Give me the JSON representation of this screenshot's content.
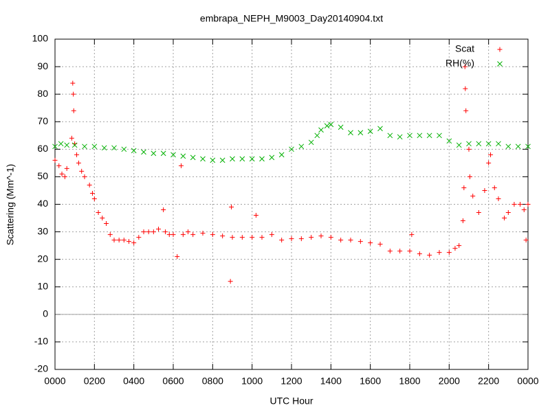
{
  "chart_data": {
    "type": "scatter",
    "title": "embrapa_NEPH_M9003_Day20140904.txt",
    "xlabel": "UTC Hour",
    "ylabel": "Scattering (Mm^-1)",
    "xlim": [
      0,
      24
    ],
    "ylim": [
      -20,
      100
    ],
    "xticks": [
      {
        "value": 0,
        "label": "0000"
      },
      {
        "value": 2,
        "label": "0200"
      },
      {
        "value": 4,
        "label": "0400"
      },
      {
        "value": 6,
        "label": "0600"
      },
      {
        "value": 8,
        "label": "0800"
      },
      {
        "value": 10,
        "label": "1000"
      },
      {
        "value": 12,
        "label": "1200"
      },
      {
        "value": 14,
        "label": "1400"
      },
      {
        "value": 16,
        "label": "1600"
      },
      {
        "value": 18,
        "label": "1800"
      },
      {
        "value": 20,
        "label": "2000"
      },
      {
        "value": 22,
        "label": "2200"
      },
      {
        "value": 24,
        "label": "0000"
      }
    ],
    "yticks": [
      -20,
      -10,
      0,
      10,
      20,
      30,
      40,
      50,
      60,
      70,
      80,
      90,
      100
    ],
    "grid": true,
    "zero_line": true,
    "legend": "top right",
    "series": [
      {
        "name": "Scat",
        "color": "#ff0000",
        "marker": "+",
        "x": [
          0,
          0.2,
          0.35,
          0.5,
          0.6,
          0.85,
          0.9,
          0.93,
          0.95,
          1.0,
          1.1,
          1.2,
          1.35,
          1.5,
          1.75,
          1.9,
          2.0,
          2.2,
          2.4,
          2.6,
          2.8,
          3.0,
          3.25,
          3.5,
          3.75,
          4.0,
          4.25,
          4.5,
          4.75,
          5.0,
          5.25,
          5.5,
          5.6,
          5.8,
          6.0,
          6.2,
          6.4,
          6.5,
          6.75,
          7.0,
          7.5,
          8.0,
          8.5,
          8.9,
          8.95,
          9.0,
          9.5,
          10.0,
          10.2,
          10.5,
          11.0,
          11.5,
          12.0,
          12.5,
          13.0,
          13.5,
          14.0,
          14.5,
          15.0,
          15.5,
          16.0,
          16.5,
          17.0,
          17.5,
          18.0,
          18.1,
          18.5,
          19.0,
          19.5,
          20.0,
          20.3,
          20.5,
          20.7,
          20.75,
          20.8,
          20.82,
          20.85,
          21.0,
          21.05,
          21.2,
          21.5,
          21.8,
          22.0,
          22.1,
          22.3,
          22.5,
          22.8,
          23.0,
          23.3,
          23.6,
          23.8,
          23.9,
          24.0
        ],
        "values": [
          56,
          54,
          51,
          50,
          53,
          64,
          84,
          80,
          74,
          62,
          58,
          55,
          52,
          50,
          47,
          44,
          42,
          37,
          35,
          33,
          29,
          27,
          27,
          27,
          26.5,
          26,
          28,
          30,
          30,
          30,
          31,
          38,
          30,
          29,
          29,
          21,
          54,
          29,
          30,
          29,
          29.5,
          29,
          28.5,
          12,
          39,
          28,
          28,
          28,
          36,
          28,
          29,
          27,
          27.5,
          27.5,
          28,
          28.5,
          28,
          27,
          27,
          26.5,
          26,
          25.5,
          23,
          23,
          23,
          29,
          22,
          21.5,
          22.5,
          22.5,
          24,
          25,
          34,
          46,
          90,
          82,
          74,
          60,
          50,
          43,
          37,
          45,
          55,
          58,
          46,
          42,
          35,
          37,
          40,
          40,
          38,
          27,
          40
        ]
      },
      {
        "name": "RH(%)",
        "color": "#00b000",
        "marker": "x",
        "x": [
          0,
          0.3,
          0.6,
          1,
          1.5,
          2,
          2.5,
          3,
          3.5,
          4,
          4.5,
          5,
          5.5,
          6,
          6.5,
          7,
          7.5,
          8,
          8.5,
          9,
          9.5,
          10,
          10.5,
          11,
          11.5,
          12,
          12.5,
          13,
          13.3,
          13.5,
          13.8,
          14,
          14.5,
          15,
          15.5,
          16,
          16.5,
          17,
          17.5,
          18,
          18.5,
          19,
          19.5,
          20,
          20.5,
          21,
          21.5,
          22,
          22.5,
          23,
          23.5,
          24
        ],
        "values": [
          61,
          62,
          61.5,
          61.5,
          61,
          61,
          60.5,
          60.5,
          60,
          59.5,
          59,
          58.5,
          58.5,
          58,
          57.5,
          57,
          56.5,
          56,
          56,
          56.5,
          56.5,
          56.5,
          56.5,
          57,
          58,
          60,
          61,
          62.5,
          65,
          67,
          68.5,
          69,
          68,
          66,
          66,
          66.5,
          67.5,
          65,
          64.5,
          65,
          65,
          65,
          65,
          63,
          61.5,
          62,
          62,
          62,
          62,
          61,
          61,
          61
        ]
      }
    ]
  }
}
